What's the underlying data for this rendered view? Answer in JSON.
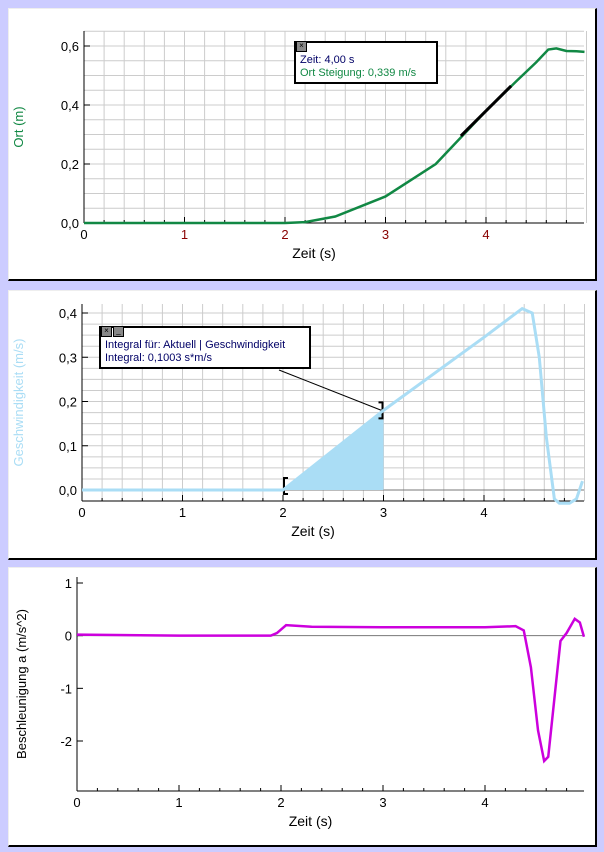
{
  "chart_data": [
    {
      "type": "line",
      "xlabel": "Zeit (s)",
      "ylabel": "Ort (m)",
      "xlim": [
        0,
        5
      ],
      "ylim": [
        0,
        0.65
      ],
      "xticks": [
        "0",
        "1",
        "2",
        "3",
        "4"
      ],
      "yticks": [
        "0,0",
        "0,2",
        "0,4",
        "0,6"
      ],
      "ytickvals": [
        0,
        0.2,
        0.4,
        0.6
      ],
      "color": "#118844",
      "grid": true,
      "x": [
        0,
        2,
        2.2,
        2.5,
        3,
        3.5,
        4,
        4.3,
        4.5,
        4.62,
        4.7,
        4.8,
        4.9,
        4.98
      ],
      "y": [
        0,
        0,
        0.003,
        0.022,
        0.09,
        0.2,
        0.38,
        0.48,
        0.545,
        0.588,
        0.592,
        0.583,
        0.582,
        0.58
      ],
      "tangent": {
        "t": 4.0,
        "from": 3.75,
        "to": 4.25,
        "slope": 0.339
      },
      "annotation": {
        "line1": "Zeit: 4,00 s",
        "line2": "Ort  Steigung: 0,339 m/s"
      }
    },
    {
      "type": "line",
      "xlabel": "Zeit (s)",
      "ylabel": "Geschwindigkeit (m/s)",
      "xlim": [
        0,
        5
      ],
      "ylim": [
        -0.03,
        0.42
      ],
      "xticks": [
        "0",
        "1",
        "2",
        "3",
        "4"
      ],
      "yticks": [
        "0,0",
        "0,1",
        "0,2",
        "0,3",
        "0,4"
      ],
      "ytickvals": [
        0,
        0.1,
        0.2,
        0.3,
        0.4
      ],
      "color": "#aaddf5",
      "grid": true,
      "x": [
        0,
        2,
        3,
        4,
        4.38,
        4.48,
        4.55,
        4.62,
        4.7,
        4.75,
        4.85,
        4.92,
        4.98
      ],
      "y": [
        0,
        0,
        0.18,
        0.345,
        0.41,
        0.4,
        0.3,
        0.12,
        -0.02,
        -0.03,
        -0.03,
        -0.02,
        0.02
      ],
      "integral": {
        "from": 2,
        "to": 3,
        "line1": "Integral für: Aktuell | Geschwindigkeit",
        "line2": "Integral: 0,1003 s*m/s"
      }
    },
    {
      "type": "line",
      "xlabel": "Zeit (s)",
      "ylabel": "Beschleunigung a (m/s^2)",
      "xlim": [
        0,
        4.97
      ],
      "ylim": [
        -3,
        1.1
      ],
      "xticks": [
        "0",
        "1",
        "2",
        "3",
        "4"
      ],
      "yticks": [
        "1",
        "0",
        "-1",
        "-2"
      ],
      "ytickvals": [
        1,
        0,
        -1,
        -2
      ],
      "color": "#cc00dd",
      "grid": false,
      "x": [
        0,
        1,
        1.9,
        1.96,
        2.05,
        2.3,
        3,
        4,
        4.3,
        4.38,
        4.45,
        4.52,
        4.58,
        4.62,
        4.68,
        4.74,
        4.8,
        4.88,
        4.93,
        4.97
      ],
      "y": [
        0.02,
        0,
        0,
        0.05,
        0.2,
        0.17,
        0.16,
        0.16,
        0.18,
        0.1,
        -0.6,
        -1.8,
        -2.38,
        -2.3,
        -1.2,
        -0.1,
        0.05,
        0.32,
        0.25,
        -0.02
      ]
    }
  ]
}
